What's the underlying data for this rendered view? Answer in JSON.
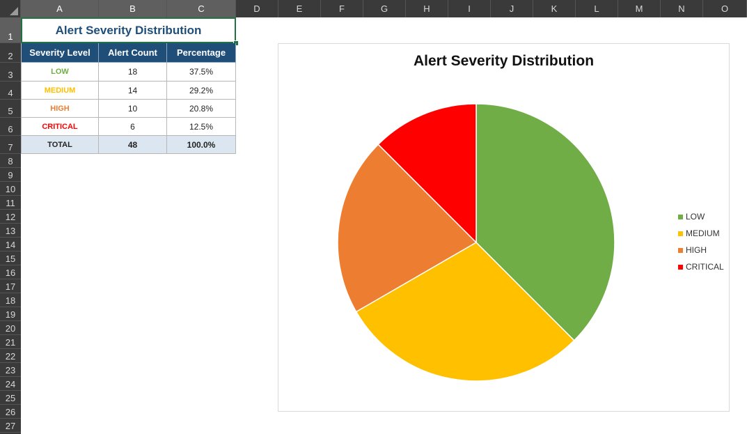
{
  "sheet": {
    "columns": [
      "A",
      "B",
      "C",
      "D",
      "E",
      "F",
      "G",
      "H",
      "I",
      "J",
      "K",
      "L",
      "M",
      "N",
      "O"
    ],
    "rows": [
      "1",
      "2",
      "3",
      "4",
      "5",
      "6",
      "7",
      "8",
      "9",
      "10",
      "11",
      "12",
      "13",
      "14",
      "15",
      "16",
      "17",
      "18",
      "19",
      "20",
      "21",
      "22",
      "23",
      "24",
      "25",
      "26",
      "27"
    ]
  },
  "table": {
    "title": "Alert Severity Distribution",
    "headers": [
      "Severity Level",
      "Alert Count",
      "Percentage"
    ],
    "rows": [
      {
        "level": "LOW",
        "count": "18",
        "pct": "37.5%",
        "color": "#70ad47"
      },
      {
        "level": "MEDIUM",
        "count": "14",
        "pct": "29.2%",
        "color": "#ffc000"
      },
      {
        "level": "HIGH",
        "count": "10",
        "pct": "20.8%",
        "color": "#ed7d31"
      },
      {
        "level": "CRITICAL",
        "count": "6",
        "pct": "12.5%",
        "color": "#ff0000"
      }
    ],
    "total": {
      "level": "TOTAL",
      "count": "48",
      "pct": "100.0%"
    }
  },
  "chart_data": {
    "type": "pie",
    "title": "Alert Severity Distribution",
    "categories": [
      "LOW",
      "MEDIUM",
      "HIGH",
      "CRITICAL"
    ],
    "values": [
      18,
      14,
      10,
      6
    ],
    "colors": [
      "#70ad47",
      "#ffc000",
      "#ed7d31",
      "#ff0000"
    ],
    "legend": "right"
  }
}
